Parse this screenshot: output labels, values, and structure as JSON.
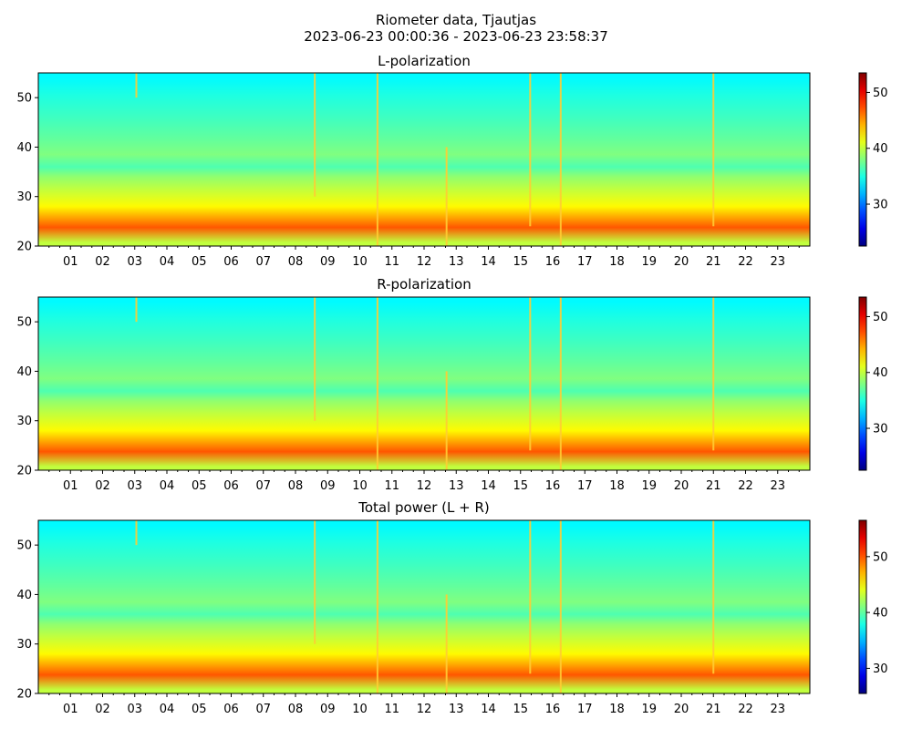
{
  "figure": {
    "title_line1": "Riometer data, Tjautjas",
    "title_line2": "2023-06-23 00:00:36 - 2023-06-23 23:58:37"
  },
  "chart_data": [
    {
      "type": "heatmap",
      "title": "L-polarization",
      "x_ticks": [
        "01",
        "02",
        "03",
        "04",
        "05",
        "06",
        "07",
        "08",
        "09",
        "10",
        "11",
        "12",
        "13",
        "14",
        "15",
        "16",
        "17",
        "18",
        "19",
        "20",
        "21",
        "22",
        "23"
      ],
      "xlim": [
        0,
        24
      ],
      "ylim": [
        20,
        55
      ],
      "y_ticks": [
        20,
        30,
        40,
        50
      ],
      "colormap": "jet",
      "colorbar": {
        "vmin": 22.5,
        "vmax": 53.5,
        "ticks": [
          30,
          40,
          50
        ]
      },
      "bands": [
        [
          20,
          21.5,
          40
        ],
        [
          21.5,
          26,
          47
        ],
        [
          26,
          30,
          42
        ],
        [
          30,
          33,
          40
        ],
        [
          33,
          35,
          38.5
        ],
        [
          35,
          37,
          36.5
        ],
        [
          37,
          40,
          38
        ],
        [
          40,
          44,
          37
        ],
        [
          44,
          48,
          36
        ],
        [
          48,
          53,
          35
        ],
        [
          53,
          55,
          34
        ]
      ],
      "spikes": [
        {
          "x": 3.05,
          "y1": 50,
          "y2": 55
        },
        {
          "x": 8.6,
          "y1": 30,
          "y2": 55
        },
        {
          "x": 10.55,
          "y1": 20,
          "y2": 55
        },
        {
          "x": 12.7,
          "y1": 20,
          "y2": 40
        },
        {
          "x": 15.3,
          "y1": 24,
          "y2": 55
        },
        {
          "x": 16.25,
          "y1": 20,
          "y2": 55
        },
        {
          "x": 21.0,
          "y1": 24,
          "y2": 55
        }
      ]
    },
    {
      "type": "heatmap",
      "title": "R-polarization",
      "x_ticks": [
        "01",
        "02",
        "03",
        "04",
        "05",
        "06",
        "07",
        "08",
        "09",
        "10",
        "11",
        "12",
        "13",
        "14",
        "15",
        "16",
        "17",
        "18",
        "19",
        "20",
        "21",
        "22",
        "23"
      ],
      "xlim": [
        0,
        24
      ],
      "ylim": [
        20,
        55
      ],
      "y_ticks": [
        20,
        30,
        40,
        50
      ],
      "colormap": "jet",
      "colorbar": {
        "vmin": 22.5,
        "vmax": 53.5,
        "ticks": [
          30,
          40,
          50
        ]
      },
      "bands": [
        [
          20,
          21.5,
          40
        ],
        [
          21.5,
          26,
          47
        ],
        [
          26,
          30,
          42
        ],
        [
          30,
          33,
          40
        ],
        [
          33,
          35,
          38.5
        ],
        [
          35,
          37,
          36.5
        ],
        [
          37,
          40,
          38
        ],
        [
          40,
          44,
          37
        ],
        [
          44,
          48,
          36
        ],
        [
          48,
          53,
          35
        ],
        [
          53,
          55,
          34
        ]
      ],
      "spikes": [
        {
          "x": 3.05,
          "y1": 50,
          "y2": 55
        },
        {
          "x": 8.6,
          "y1": 30,
          "y2": 55
        },
        {
          "x": 10.55,
          "y1": 20,
          "y2": 55
        },
        {
          "x": 12.7,
          "y1": 20,
          "y2": 40
        },
        {
          "x": 15.3,
          "y1": 24,
          "y2": 55
        },
        {
          "x": 16.25,
          "y1": 20,
          "y2": 55
        },
        {
          "x": 21.0,
          "y1": 24,
          "y2": 55
        }
      ]
    },
    {
      "type": "heatmap",
      "title": "Total power (L + R)",
      "x_ticks": [
        "01",
        "02",
        "03",
        "04",
        "05",
        "06",
        "07",
        "08",
        "09",
        "10",
        "11",
        "12",
        "13",
        "14",
        "15",
        "16",
        "17",
        "18",
        "19",
        "20",
        "21",
        "22",
        "23"
      ],
      "xlim": [
        0,
        24
      ],
      "ylim": [
        20,
        55
      ],
      "y_ticks": [
        20,
        30,
        40,
        50
      ],
      "colormap": "jet",
      "colorbar": {
        "vmin": 25.5,
        "vmax": 56.5,
        "ticks": [
          30,
          40,
          50
        ]
      },
      "bands": [
        [
          20,
          21.5,
          43
        ],
        [
          21.5,
          26,
          50
        ],
        [
          26,
          30,
          45
        ],
        [
          30,
          33,
          43
        ],
        [
          33,
          35,
          41.5
        ],
        [
          35,
          37,
          39.5
        ],
        [
          37,
          40,
          41
        ],
        [
          40,
          44,
          40
        ],
        [
          44,
          48,
          39
        ],
        [
          48,
          53,
          38
        ],
        [
          53,
          55,
          37
        ]
      ],
      "spikes": [
        {
          "x": 3.05,
          "y1": 50,
          "y2": 55
        },
        {
          "x": 8.6,
          "y1": 30,
          "y2": 55
        },
        {
          "x": 10.55,
          "y1": 20,
          "y2": 55
        },
        {
          "x": 12.7,
          "y1": 20,
          "y2": 40
        },
        {
          "x": 15.3,
          "y1": 24,
          "y2": 55
        },
        {
          "x": 16.25,
          "y1": 20,
          "y2": 55
        },
        {
          "x": 21.0,
          "y1": 24,
          "y2": 55
        }
      ]
    }
  ]
}
